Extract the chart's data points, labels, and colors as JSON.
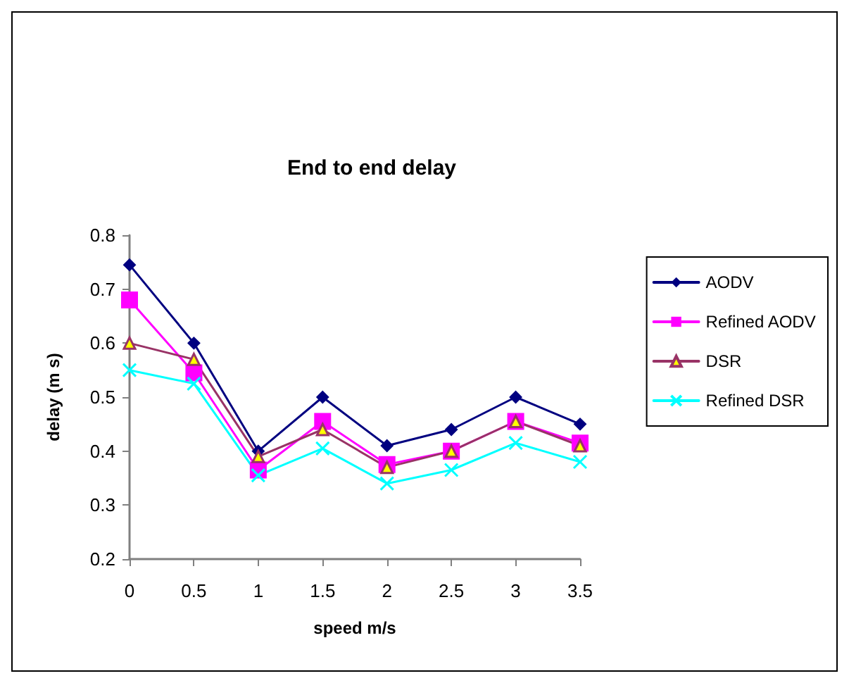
{
  "chart_data": {
    "type": "line",
    "title": "End to end delay",
    "xlabel": "speed m/s",
    "ylabel": "delay (m s)",
    "categories": [
      "0",
      "0.5",
      "1",
      "1.5",
      "2",
      "2.5",
      "3",
      "3.5"
    ],
    "series": [
      {
        "name": "AODV",
        "color": "#000080",
        "marker": "diamond",
        "values": [
          0.745,
          0.6,
          0.4,
          0.5,
          0.41,
          0.44,
          0.5,
          0.45
        ]
      },
      {
        "name": "Refined AODV",
        "color": "#ff00ff",
        "marker": "square",
        "values": [
          0.68,
          0.545,
          0.365,
          0.455,
          0.375,
          0.4,
          0.455,
          0.415
        ]
      },
      {
        "name": "DSR",
        "color": "#993366",
        "marker": "triangle",
        "values": [
          0.6,
          0.57,
          0.39,
          0.44,
          0.37,
          0.4,
          0.455,
          0.41
        ]
      },
      {
        "name": "Refined DSR",
        "color": "#00ffff",
        "marker": "cross",
        "values": [
          0.55,
          0.525,
          0.355,
          0.405,
          0.34,
          0.365,
          0.415,
          0.38
        ]
      }
    ],
    "ylim": [
      0.2,
      0.8
    ],
    "yticks": [
      0.2,
      0.3,
      0.4,
      0.5,
      0.6,
      0.7,
      0.8
    ],
    "grid": false,
    "legend": "right",
    "line_style": "solid"
  }
}
